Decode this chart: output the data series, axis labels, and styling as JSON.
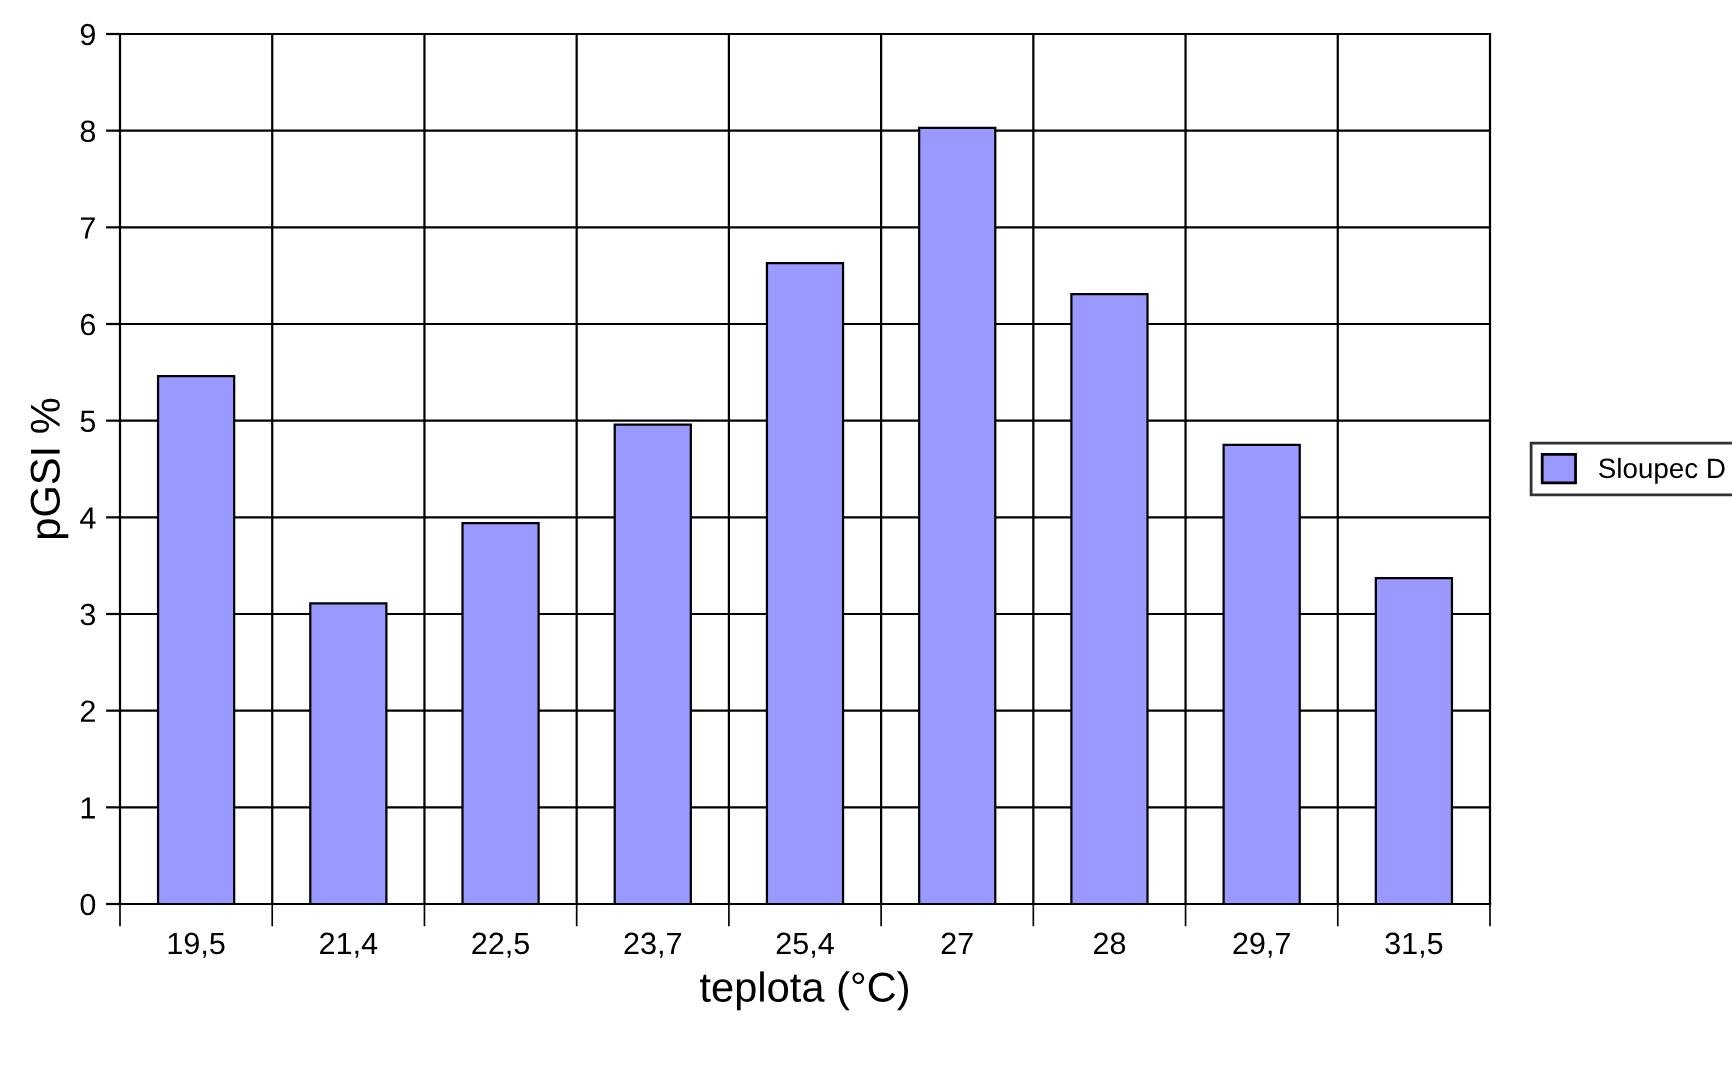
{
  "chart_data": {
    "type": "bar",
    "xlabel": "teplota (°C)",
    "ylabel": "pGSI %",
    "categories": [
      "19,5",
      "21,4",
      "22,5",
      "23,7",
      "25,4",
      "27",
      "28",
      "29,7",
      "31,5"
    ],
    "series": [
      {
        "name": "Sloupec D",
        "color": "#9999ff",
        "values": [
          5.46,
          3.11,
          3.94,
          4.96,
          6.63,
          8.03,
          6.31,
          4.75,
          3.37
        ]
      }
    ],
    "ylim": [
      0,
      9
    ],
    "yticks": [
      0,
      1,
      2,
      3,
      4,
      5,
      6,
      7,
      8,
      9
    ],
    "grid": true,
    "legend": "right"
  }
}
